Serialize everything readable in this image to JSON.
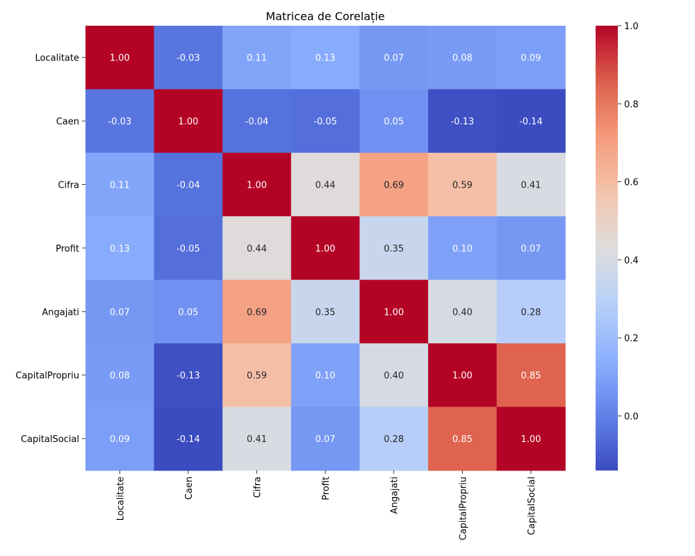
{
  "chart_data": {
    "type": "heatmap",
    "title": "Matricea de Corelație",
    "row_labels": [
      "Localitate",
      "Caen",
      "Cifra",
      "Profit",
      "Angajati",
      "CapitalPropriu",
      "CapitalSocial"
    ],
    "col_labels": [
      "Localitate",
      "Caen",
      "Cifra",
      "Profit",
      "Angajati",
      "CapitalPropriu",
      "CapitalSocial"
    ],
    "values": [
      [
        1.0,
        -0.03,
        0.11,
        0.13,
        0.07,
        0.08,
        0.09
      ],
      [
        -0.03,
        1.0,
        -0.04,
        -0.05,
        0.05,
        -0.13,
        -0.14
      ],
      [
        0.11,
        -0.04,
        1.0,
        0.44,
        0.69,
        0.59,
        0.41
      ],
      [
        0.13,
        -0.05,
        0.44,
        1.0,
        0.35,
        0.1,
        0.07
      ],
      [
        0.07,
        0.05,
        0.69,
        0.35,
        1.0,
        0.4,
        0.28
      ],
      [
        0.08,
        -0.13,
        0.59,
        0.1,
        0.4,
        1.0,
        0.85
      ],
      [
        0.09,
        -0.14,
        0.41,
        0.07,
        0.28,
        0.85,
        1.0
      ]
    ],
    "value_format": "0.00",
    "colormap": "coolwarm",
    "colorbar": {
      "min": -0.14,
      "max": 1.0,
      "ticks": [
        0.0,
        0.2,
        0.4,
        0.6,
        0.8,
        1.0
      ],
      "tick_labels": [
        "0.0",
        "0.2",
        "0.4",
        "0.6",
        "0.8",
        "1.0"
      ]
    }
  }
}
